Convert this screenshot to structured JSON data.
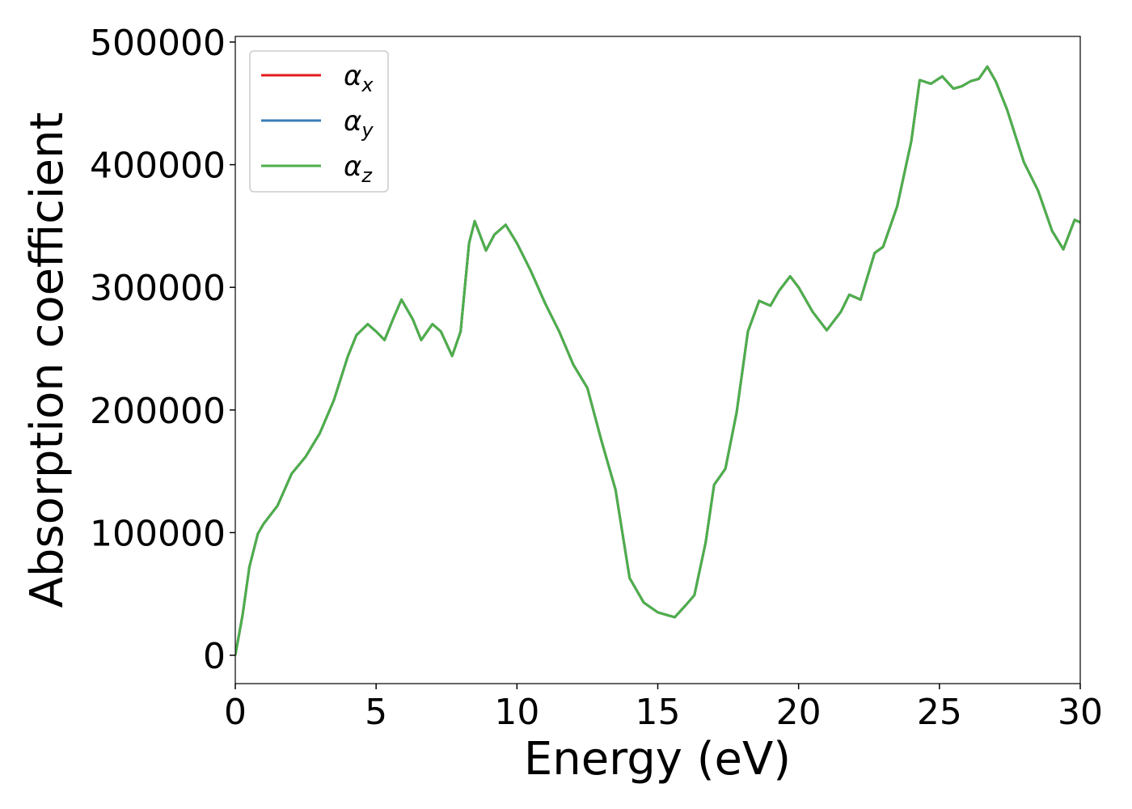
{
  "chart_data": {
    "type": "line",
    "xlabel": "Energy (eV)",
    "ylabel": "Absorption coefficient",
    "x": [
      0,
      0.26,
      0.5,
      0.8,
      1.0,
      1.5,
      2.0,
      2.5,
      3.0,
      3.5,
      4.0,
      4.3,
      4.7,
      5.0,
      5.3,
      5.6,
      5.9,
      6.3,
      6.6,
      7.0,
      7.3,
      7.7,
      8.0,
      8.3,
      8.5,
      8.9,
      9.2,
      9.6,
      10.0,
      10.5,
      11.0,
      11.5,
      12.0,
      12.5,
      13.0,
      13.5,
      14.0,
      14.5,
      15.0,
      15.6,
      16.0,
      16.3,
      16.7,
      17.0,
      17.4,
      17.8,
      18.2,
      18.6,
      19.0,
      19.3,
      19.7,
      20.0,
      20.5,
      21.0,
      21.5,
      21.8,
      22.2,
      22.7,
      23.0,
      23.5,
      24.0,
      24.3,
      24.7,
      25.1,
      25.5,
      25.8,
      26.1,
      26.4,
      26.7,
      27.0,
      27.4,
      28.0,
      28.5,
      29.0,
      29.4,
      29.8,
      30.0
    ],
    "series": [
      {
        "name": "αx",
        "color": "#e41a1c",
        "values": [
          0,
          33000,
          72000,
          99000,
          107000,
          122000,
          148000,
          162000,
          181000,
          208000,
          244000,
          261000,
          270000,
          264000,
          257000,
          274000,
          290000,
          274000,
          257000,
          270000,
          264000,
          244000,
          264000,
          336000,
          354000,
          330000,
          343000,
          351000,
          336000,
          313000,
          287000,
          264000,
          237000,
          218000,
          175000,
          135000,
          63000,
          43000,
          35000,
          31000,
          41000,
          49000,
          92000,
          139000,
          152000,
          198000,
          264000,
          289000,
          285000,
          297000,
          309000,
          300000,
          280000,
          265000,
          280000,
          294000,
          290000,
          328000,
          333000,
          366000,
          419000,
          469000,
          466000,
          472000,
          462000,
          464000,
          468000,
          470000,
          480000,
          468000,
          445000,
          402000,
          379000,
          346000,
          331000,
          355000,
          353000
        ]
      },
      {
        "name": "αy",
        "color": "#377eb8",
        "values": [
          0,
          33000,
          72000,
          99000,
          107000,
          122000,
          148000,
          162000,
          181000,
          208000,
          244000,
          261000,
          270000,
          264000,
          257000,
          274000,
          290000,
          274000,
          257000,
          270000,
          264000,
          244000,
          264000,
          336000,
          354000,
          330000,
          343000,
          351000,
          336000,
          313000,
          287000,
          264000,
          237000,
          218000,
          175000,
          135000,
          63000,
          43000,
          35000,
          31000,
          41000,
          49000,
          92000,
          139000,
          152000,
          198000,
          264000,
          289000,
          285000,
          297000,
          309000,
          300000,
          280000,
          265000,
          280000,
          294000,
          290000,
          328000,
          333000,
          366000,
          419000,
          469000,
          466000,
          472000,
          462000,
          464000,
          468000,
          470000,
          480000,
          468000,
          445000,
          402000,
          379000,
          346000,
          331000,
          355000,
          353000
        ]
      },
      {
        "name": "αz",
        "color": "#4daf4a",
        "values": [
          0,
          33000,
          72000,
          99000,
          107000,
          122000,
          148000,
          162000,
          181000,
          208000,
          244000,
          261000,
          270000,
          264000,
          257000,
          274000,
          290000,
          274000,
          257000,
          270000,
          264000,
          244000,
          264000,
          336000,
          354000,
          330000,
          343000,
          351000,
          336000,
          313000,
          287000,
          264000,
          237000,
          218000,
          175000,
          135000,
          63000,
          43000,
          35000,
          31000,
          41000,
          49000,
          92000,
          139000,
          152000,
          198000,
          264000,
          289000,
          285000,
          297000,
          309000,
          300000,
          280000,
          265000,
          280000,
          294000,
          290000,
          328000,
          333000,
          366000,
          419000,
          469000,
          466000,
          472000,
          462000,
          464000,
          468000,
          470000,
          480000,
          468000,
          445000,
          402000,
          379000,
          346000,
          331000,
          355000,
          353000
        ]
      }
    ],
    "xlim": [
      0,
      30
    ],
    "xticks": [
      0,
      5,
      10,
      15,
      20,
      25,
      30
    ],
    "ylim": [
      -23100,
      504600
    ],
    "yticks": [
      0,
      100000,
      200000,
      300000,
      400000,
      500000
    ],
    "legend": "upper left"
  }
}
